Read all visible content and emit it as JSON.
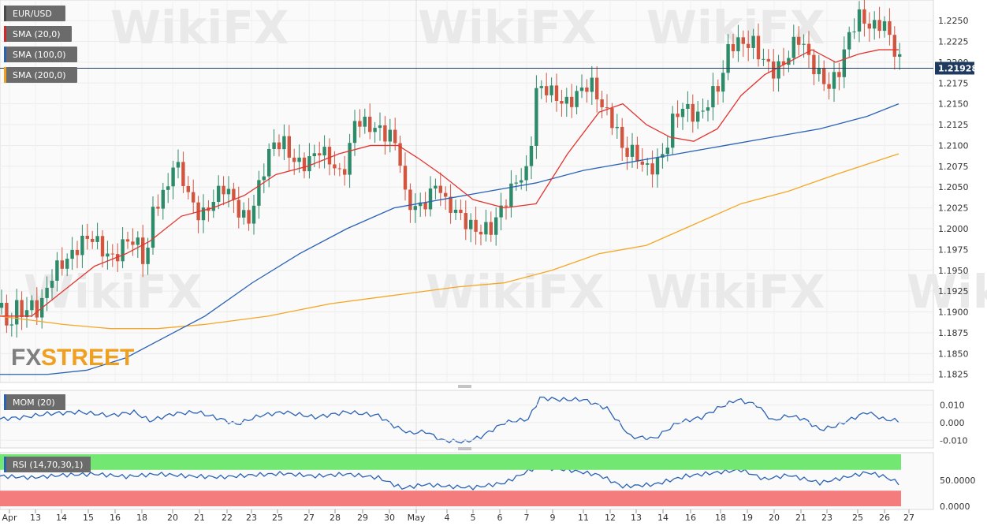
{
  "chart_data": {
    "type": "candlestick",
    "symbol": "EUR/USD",
    "last_price": "1.21928",
    "brand": {
      "prefix": "FX",
      "suffix": "STREET"
    },
    "watermark": "WikiFX",
    "y_ticks": [
      "1.2250",
      "1.2225",
      "1.2200",
      "1.2175",
      "1.2150",
      "1.2125",
      "1.2100",
      "1.2075",
      "1.2050",
      "1.2025",
      "1.2000",
      "1.1975",
      "1.1950",
      "1.1925",
      "1.1900",
      "1.1875",
      "1.1850",
      "1.1825"
    ],
    "ylim": [
      1.182,
      1.227
    ],
    "x_ticks": [
      "Apr",
      "13",
      "14",
      "15",
      "16",
      "18",
      "20",
      "21",
      "22",
      "23",
      "25",
      "27",
      "28",
      "29",
      "30",
      "May",
      "4",
      "5",
      "6",
      "7",
      "9",
      "11",
      "12",
      "13",
      "14",
      "16",
      "18",
      "19",
      "20",
      "21",
      "23",
      "25",
      "26",
      "27"
    ],
    "indicators": [
      {
        "label": "EUR/USD",
        "color": "#4a4a4a"
      },
      {
        "label": "SMA (20,0)",
        "color": "#d62728"
      },
      {
        "label": "SMA (100,0)",
        "color": "#2a62b5"
      },
      {
        "label": "SMA (200,0)",
        "color": "#f0a020"
      }
    ],
    "colors": {
      "up": "#2e8b6a",
      "down": "#d2553f",
      "sma20": "#e3342f",
      "sma100": "#2a62b5",
      "sma200": "#f5a623"
    },
    "anchors": [
      [
        0,
        1.1905
      ],
      [
        10,
        1.1875
      ],
      [
        20,
        1.191
      ],
      [
        30,
        1.1905
      ],
      [
        40,
        1.191
      ],
      [
        50,
        1.1895
      ],
      [
        60,
        1.1925
      ],
      [
        70,
        1.195
      ],
      [
        80,
        1.1965
      ],
      [
        100,
        1.198
      ],
      [
        115,
        1.1985
      ],
      [
        130,
        1.1975
      ],
      [
        145,
        1.197
      ],
      [
        160,
        1.1985
      ],
      [
        175,
        1.1975
      ],
      [
        185,
        1.1955
      ],
      [
        195,
        1.2035
      ],
      [
        210,
        1.2045
      ],
      [
        220,
        1.2075
      ],
      [
        230,
        1.206
      ],
      [
        240,
        1.2035
      ],
      [
        255,
        1.202
      ],
      [
        270,
        1.2035
      ],
      [
        285,
        1.2045
      ],
      [
        300,
        1.2025
      ],
      [
        315,
        1.2015
      ],
      [
        330,
        1.2055
      ],
      [
        345,
        1.2095
      ],
      [
        360,
        1.2105
      ],
      [
        375,
        1.2085
      ],
      [
        390,
        1.2075
      ],
      [
        405,
        1.209
      ],
      [
        420,
        1.2085
      ],
      [
        430,
        1.207
      ],
      [
        440,
        1.208
      ],
      [
        450,
        1.2125
      ],
      [
        465,
        1.212
      ],
      [
        480,
        1.2125
      ],
      [
        495,
        1.2115
      ],
      [
        505,
        1.2095
      ],
      [
        515,
        1.2025
      ],
      [
        530,
        1.2025
      ],
      [
        545,
        1.2045
      ],
      [
        555,
        1.206
      ],
      [
        565,
        1.2025
      ],
      [
        580,
        1.2015
      ],
      [
        595,
        1.201
      ],
      [
        610,
        1.2
      ],
      [
        625,
        1.1995
      ],
      [
        640,
        1.203
      ],
      [
        655,
        1.2065
      ],
      [
        670,
        1.207
      ],
      [
        680,
        1.216
      ],
      [
        695,
        1.2165
      ],
      [
        710,
        1.216
      ],
      [
        720,
        1.2155
      ],
      [
        735,
        1.216
      ],
      [
        750,
        1.217
      ],
      [
        765,
        1.215
      ],
      [
        780,
        1.213
      ],
      [
        790,
        1.209
      ],
      [
        805,
        1.2085
      ],
      [
        820,
        1.2075
      ],
      [
        835,
        1.2085
      ],
      [
        845,
        1.2095
      ],
      [
        855,
        1.213
      ],
      [
        870,
        1.2145
      ],
      [
        885,
        1.214
      ],
      [
        900,
        1.2155
      ],
      [
        915,
        1.217
      ],
      [
        925,
        1.222
      ],
      [
        940,
        1.223
      ],
      [
        955,
        1.2225
      ],
      [
        965,
        1.22
      ],
      [
        980,
        1.2185
      ],
      [
        995,
        1.2205
      ],
      [
        1005,
        1.2225
      ],
      [
        1015,
        1.223
      ],
      [
        1025,
        1.22
      ],
      [
        1035,
        1.2185
      ],
      [
        1050,
        1.2175
      ],
      [
        1065,
        1.2195
      ],
      [
        1075,
        1.2225
      ],
      [
        1090,
        1.225
      ],
      [
        1105,
        1.2245
      ],
      [
        1120,
        1.2255
      ],
      [
        1130,
        1.2225
      ],
      [
        1140,
        1.2195
      ]
    ],
    "sma20": [
      [
        0,
        1.1895
      ],
      [
        40,
        1.1895
      ],
      [
        80,
        1.1925
      ],
      [
        120,
        1.1955
      ],
      [
        160,
        1.197
      ],
      [
        190,
        1.1985
      ],
      [
        230,
        1.2015
      ],
      [
        270,
        1.2025
      ],
      [
        310,
        1.204
      ],
      [
        350,
        1.2065
      ],
      [
        390,
        1.2075
      ],
      [
        430,
        1.209
      ],
      [
        470,
        1.21
      ],
      [
        505,
        1.21
      ],
      [
        530,
        1.2085
      ],
      [
        560,
        1.2065
      ],
      [
        600,
        1.2035
      ],
      [
        640,
        1.2025
      ],
      [
        680,
        1.203
      ],
      [
        720,
        1.209
      ],
      [
        760,
        1.214
      ],
      [
        790,
        1.215
      ],
      [
        820,
        1.2125
      ],
      [
        850,
        1.211
      ],
      [
        880,
        1.2105
      ],
      [
        910,
        1.212
      ],
      [
        940,
        1.216
      ],
      [
        970,
        1.2185
      ],
      [
        1000,
        1.22
      ],
      [
        1030,
        1.2215
      ],
      [
        1060,
        1.22
      ],
      [
        1090,
        1.221
      ],
      [
        1115,
        1.2215
      ],
      [
        1140,
        1.2215
      ]
    ],
    "sma100": [
      [
        0,
        1.1825
      ],
      [
        60,
        1.1825
      ],
      [
        110,
        1.183
      ],
      [
        160,
        1.1845
      ],
      [
        210,
        1.187
      ],
      [
        260,
        1.1895
      ],
      [
        320,
        1.1935
      ],
      [
        380,
        1.197
      ],
      [
        440,
        1.2
      ],
      [
        500,
        1.2025
      ],
      [
        560,
        1.2035
      ],
      [
        620,
        1.2045
      ],
      [
        680,
        1.2055
      ],
      [
        740,
        1.207
      ],
      [
        800,
        1.208
      ],
      [
        860,
        1.209
      ],
      [
        920,
        1.21
      ],
      [
        980,
        1.211
      ],
      [
        1040,
        1.212
      ],
      [
        1100,
        1.2135
      ],
      [
        1140,
        1.215
      ]
    ],
    "sma200": [
      [
        0,
        1.1895
      ],
      [
        80,
        1.1885
      ],
      [
        140,
        1.188
      ],
      [
        200,
        1.188
      ],
      [
        260,
        1.1885
      ],
      [
        340,
        1.1895
      ],
      [
        420,
        1.191
      ],
      [
        500,
        1.192
      ],
      [
        580,
        1.193
      ],
      [
        640,
        1.1935
      ],
      [
        700,
        1.195
      ],
      [
        760,
        1.197
      ],
      [
        820,
        1.198
      ],
      [
        880,
        1.2005
      ],
      [
        940,
        1.203
      ],
      [
        1000,
        1.2045
      ],
      [
        1060,
        1.2065
      ],
      [
        1140,
        1.209
      ]
    ],
    "mom": {
      "label": "MOM (20)",
      "y_ticks": [
        "0.010",
        "0.000",
        "-0.010"
      ],
      "ylim": [
        -0.013,
        0.016
      ],
      "color": "#2a62b5",
      "points": [
        [
          0,
          0.002
        ],
        [
          30,
          0.003
        ],
        [
          60,
          0.005
        ],
        [
          100,
          0.006
        ],
        [
          140,
          0.004
        ],
        [
          170,
          0.006
        ],
        [
          190,
          0.001
        ],
        [
          220,
          0.005
        ],
        [
          250,
          0.006
        ],
        [
          280,
          0.002
        ],
        [
          300,
          -0.001
        ],
        [
          330,
          0.004
        ],
        [
          360,
          0.006
        ],
        [
          400,
          0.003
        ],
        [
          440,
          0.006
        ],
        [
          480,
          0.004
        ],
        [
          500,
          -0.002
        ],
        [
          520,
          -0.006
        ],
        [
          540,
          -0.005
        ],
        [
          560,
          -0.01
        ],
        [
          590,
          -0.011
        ],
        [
          610,
          -0.008
        ],
        [
          640,
          0.0
        ],
        [
          670,
          0.002
        ],
        [
          685,
          0.014
        ],
        [
          710,
          0.013
        ],
        [
          740,
          0.013
        ],
        [
          770,
          0.008
        ],
        [
          800,
          -0.008
        ],
        [
          830,
          -0.009
        ],
        [
          860,
          0.0
        ],
        [
          890,
          0.003
        ],
        [
          910,
          0.008
        ],
        [
          935,
          0.013
        ],
        [
          960,
          0.01
        ],
        [
          980,
          0.001
        ],
        [
          1000,
          0.004
        ],
        [
          1020,
          0.002
        ],
        [
          1040,
          -0.004
        ],
        [
          1060,
          -0.002
        ],
        [
          1080,
          0.002
        ],
        [
          1100,
          0.006
        ],
        [
          1120,
          0.002
        ],
        [
          1140,
          0.001
        ]
      ]
    },
    "rsi": {
      "label": "RSI (14,70,30,1)",
      "y_ticks": [
        "50.0000",
        "0.0000"
      ],
      "ylim": [
        0,
        100
      ],
      "upper": 70,
      "lower": 30,
      "color": "#2a62b5",
      "points": [
        [
          0,
          58
        ],
        [
          40,
          55
        ],
        [
          80,
          60
        ],
        [
          120,
          62
        ],
        [
          160,
          57
        ],
        [
          200,
          62
        ],
        [
          240,
          58
        ],
        [
          280,
          56
        ],
        [
          320,
          60
        ],
        [
          360,
          63
        ],
        [
          400,
          58
        ],
        [
          440,
          62
        ],
        [
          480,
          55
        ],
        [
          510,
          35
        ],
        [
          540,
          42
        ],
        [
          570,
          38
        ],
        [
          600,
          36
        ],
        [
          640,
          45
        ],
        [
          680,
          75
        ],
        [
          720,
          70
        ],
        [
          760,
          60
        ],
        [
          790,
          38
        ],
        [
          830,
          42
        ],
        [
          870,
          58
        ],
        [
          910,
          65
        ],
        [
          940,
          70
        ],
        [
          970,
          52
        ],
        [
          1000,
          60
        ],
        [
          1040,
          45
        ],
        [
          1070,
          55
        ],
        [
          1100,
          65
        ],
        [
          1120,
          58
        ],
        [
          1140,
          45
        ]
      ]
    }
  }
}
